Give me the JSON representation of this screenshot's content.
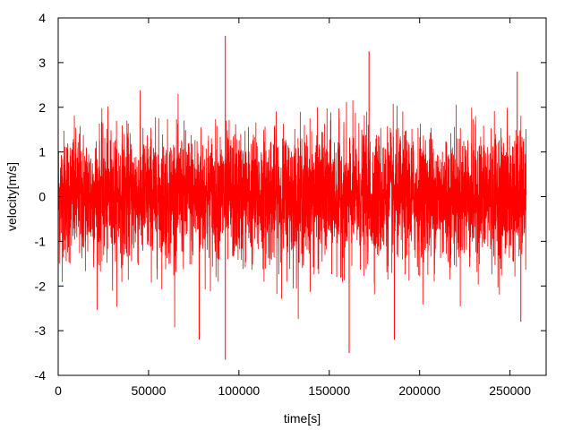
{
  "chart_data": {
    "type": "line",
    "xlabel": "time[s]",
    "ylabel": "velocity[m/s]",
    "xlim": [
      0,
      270000
    ],
    "ylim": [
      -4,
      4
    ],
    "x_ticks": [
      0,
      50000,
      100000,
      150000,
      200000,
      250000
    ],
    "x_tick_labels": [
      "0",
      "50000",
      "100000",
      "150000",
      "200000",
      "250000"
    ],
    "y_ticks": [
      -4,
      -3,
      -2,
      -1,
      0,
      1,
      2,
      3,
      4
    ],
    "y_tick_labels": [
      "-4",
      "-3",
      "-2",
      "-1",
      "0",
      "1",
      "2",
      "3",
      "4"
    ],
    "grid": false,
    "legend": "none",
    "series": [
      {
        "color": "#ff0000",
        "x_range": [
          0,
          259000
        ],
        "y_mean": 0,
        "y_typical_range": [
          -2,
          2
        ],
        "y_min": -3.65,
        "y_max": 3.6,
        "extremes": [
          {
            "x": 92500,
            "y": 3.6
          },
          {
            "x": 92500,
            "y": -3.65
          },
          {
            "x": 78000,
            "y": -3.2
          },
          {
            "x": 172000,
            "y": 3.25
          },
          {
            "x": 161000,
            "y": -3.5
          },
          {
            "x": 186000,
            "y": -3.2
          },
          {
            "x": 254000,
            "y": 2.8
          },
          {
            "x": 256000,
            "y": -2.8
          }
        ]
      }
    ]
  }
}
